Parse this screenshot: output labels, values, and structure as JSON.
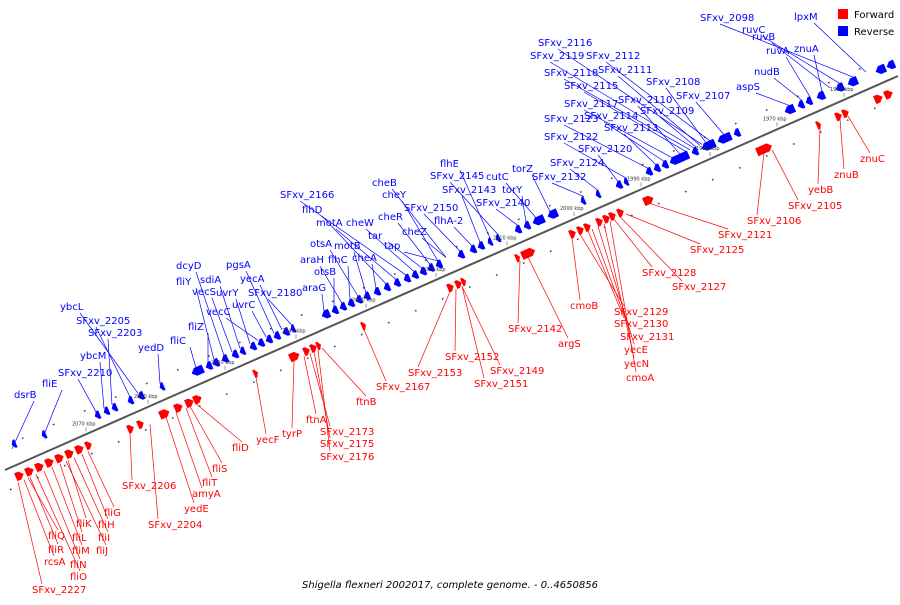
{
  "caption": "Shigella flexneri 2002017, complete genome. - 0..4650856",
  "legend": [
    {
      "label": "Forward",
      "color": "#ff0000"
    },
    {
      "label": "Reverse",
      "color": "#0000ff"
    }
  ],
  "colors": {
    "forward": "#ff0000",
    "reverse": "#0000ff",
    "backbone": "#555555"
  },
  "ticks": [
    "2070 kbp",
    "2060 kbp",
    "2050 kbp",
    "2040 kbp",
    "2030 kbp",
    "2020 kbp",
    "2010 kbp",
    "2000 kbp",
    "1990 kbp",
    "1980 kbp",
    "1970 kbp",
    "1960 kbp"
  ],
  "forward_labels": [
    "SFxv_2227",
    "rcsA",
    "fliO",
    "fliR",
    "fliN",
    "fliQ",
    "fliM",
    "fliL",
    "fliJ",
    "fliK",
    "fliI",
    "fliH",
    "fliG",
    "SFxv_2206",
    "SFxv_2204",
    "yedE",
    "amyA",
    "fliT",
    "fliS",
    "fliD",
    "yecF",
    "tyrP",
    "ftnA",
    "SFxv_2173",
    "SFxv_2175",
    "SFxv_2176",
    "ftnB",
    "SFxv_2167",
    "SFxv_2153",
    "SFxv_2152",
    "SFxv_2149",
    "SFxv_2151",
    "SFxv_2142",
    "argS",
    "cmoB",
    "SFxv_2129",
    "SFxv_2130",
    "SFxv_2131",
    "yecE",
    "yecN",
    "cmoA",
    "SFxv_2128",
    "SFxv_2127",
    "SFxv_2125",
    "SFxv_2121",
    "SFxv_2106",
    "SFxv_2105",
    "yebB",
    "znuB",
    "znuC"
  ],
  "reverse_labels": [
    "dsrB",
    "fliE",
    "SFxv_2210",
    "ybcM",
    "SFxv_2203",
    "SFxv_2205",
    "ybcL",
    "yedD",
    "fliC",
    "fliZ",
    "fliY",
    "dcyD",
    "vecS",
    "sdiA",
    "uvrY",
    "vecC",
    "uvrC",
    "pgsA",
    "yecA",
    "SFxv_2180",
    "araG",
    "otsB",
    "araH",
    "flhC",
    "otsA",
    "motB",
    "cheA",
    "flhD",
    "motA",
    "SFxv_2166",
    "cheW",
    "tar",
    "cheR",
    "cheY",
    "cheB",
    "tap",
    "cheZ",
    "SFxv_2150",
    "flhA-2",
    "SFxv_2143",
    "flhE",
    "SFxv_2145",
    "SFxv_2140",
    "torY",
    "cutC",
    "torZ",
    "SFxv_2132",
    "SFxv_2124",
    "SFxv_2120",
    "SFxv_2122",
    "SFxv_2123",
    "SFxv_2113",
    "SFxv_2114",
    "SFxv_2117",
    "SFxv_2110",
    "SFxv_2109",
    "SFxv_2115",
    "SFxv_2118",
    "SFxv_2108",
    "SFxv_2107",
    "SFxv_2111",
    "SFxv_2119",
    "SFxv_2112",
    "SFxv_2116",
    "aspS",
    "nudB",
    "ruvA",
    "znuA",
    "ruvB",
    "ruvC",
    "SFxv_2098",
    "lpxM"
  ]
}
